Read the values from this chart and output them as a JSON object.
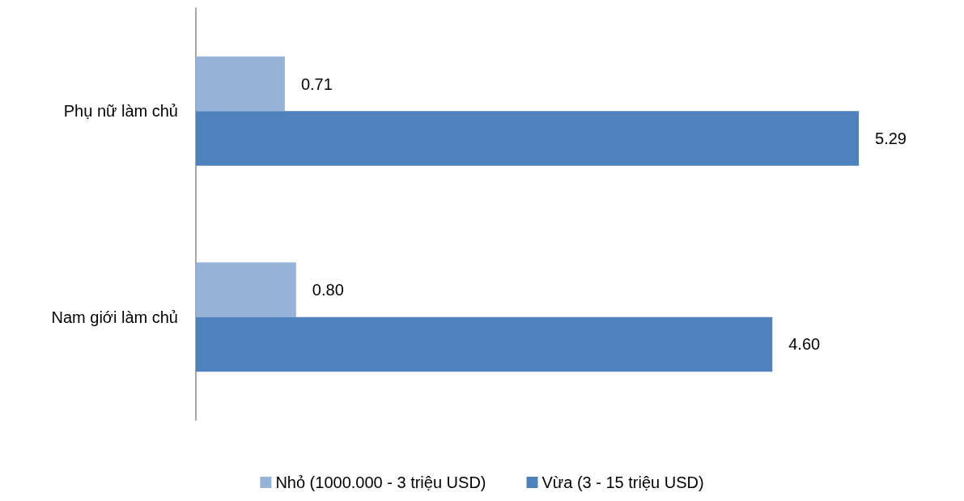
{
  "chart_data": {
    "type": "bar",
    "orientation": "horizontal",
    "categories": [
      "Phụ nữ làm chủ",
      "Nam giới làm chủ"
    ],
    "series": [
      {
        "name": "Nhỏ (1000.000 - 3 triệu USD)",
        "color": "#95b3d7",
        "values": [
          0.71,
          0.8
        ],
        "value_labels": [
          "0.71",
          "0.80"
        ]
      },
      {
        "name": "Vừa (3 - 15 triệu USD)",
        "color": "#4f81bd",
        "values": [
          5.29,
          4.6
        ],
        "value_labels": [
          "5.29",
          "4.60"
        ]
      }
    ],
    "grid": false,
    "legend": "bottom"
  }
}
